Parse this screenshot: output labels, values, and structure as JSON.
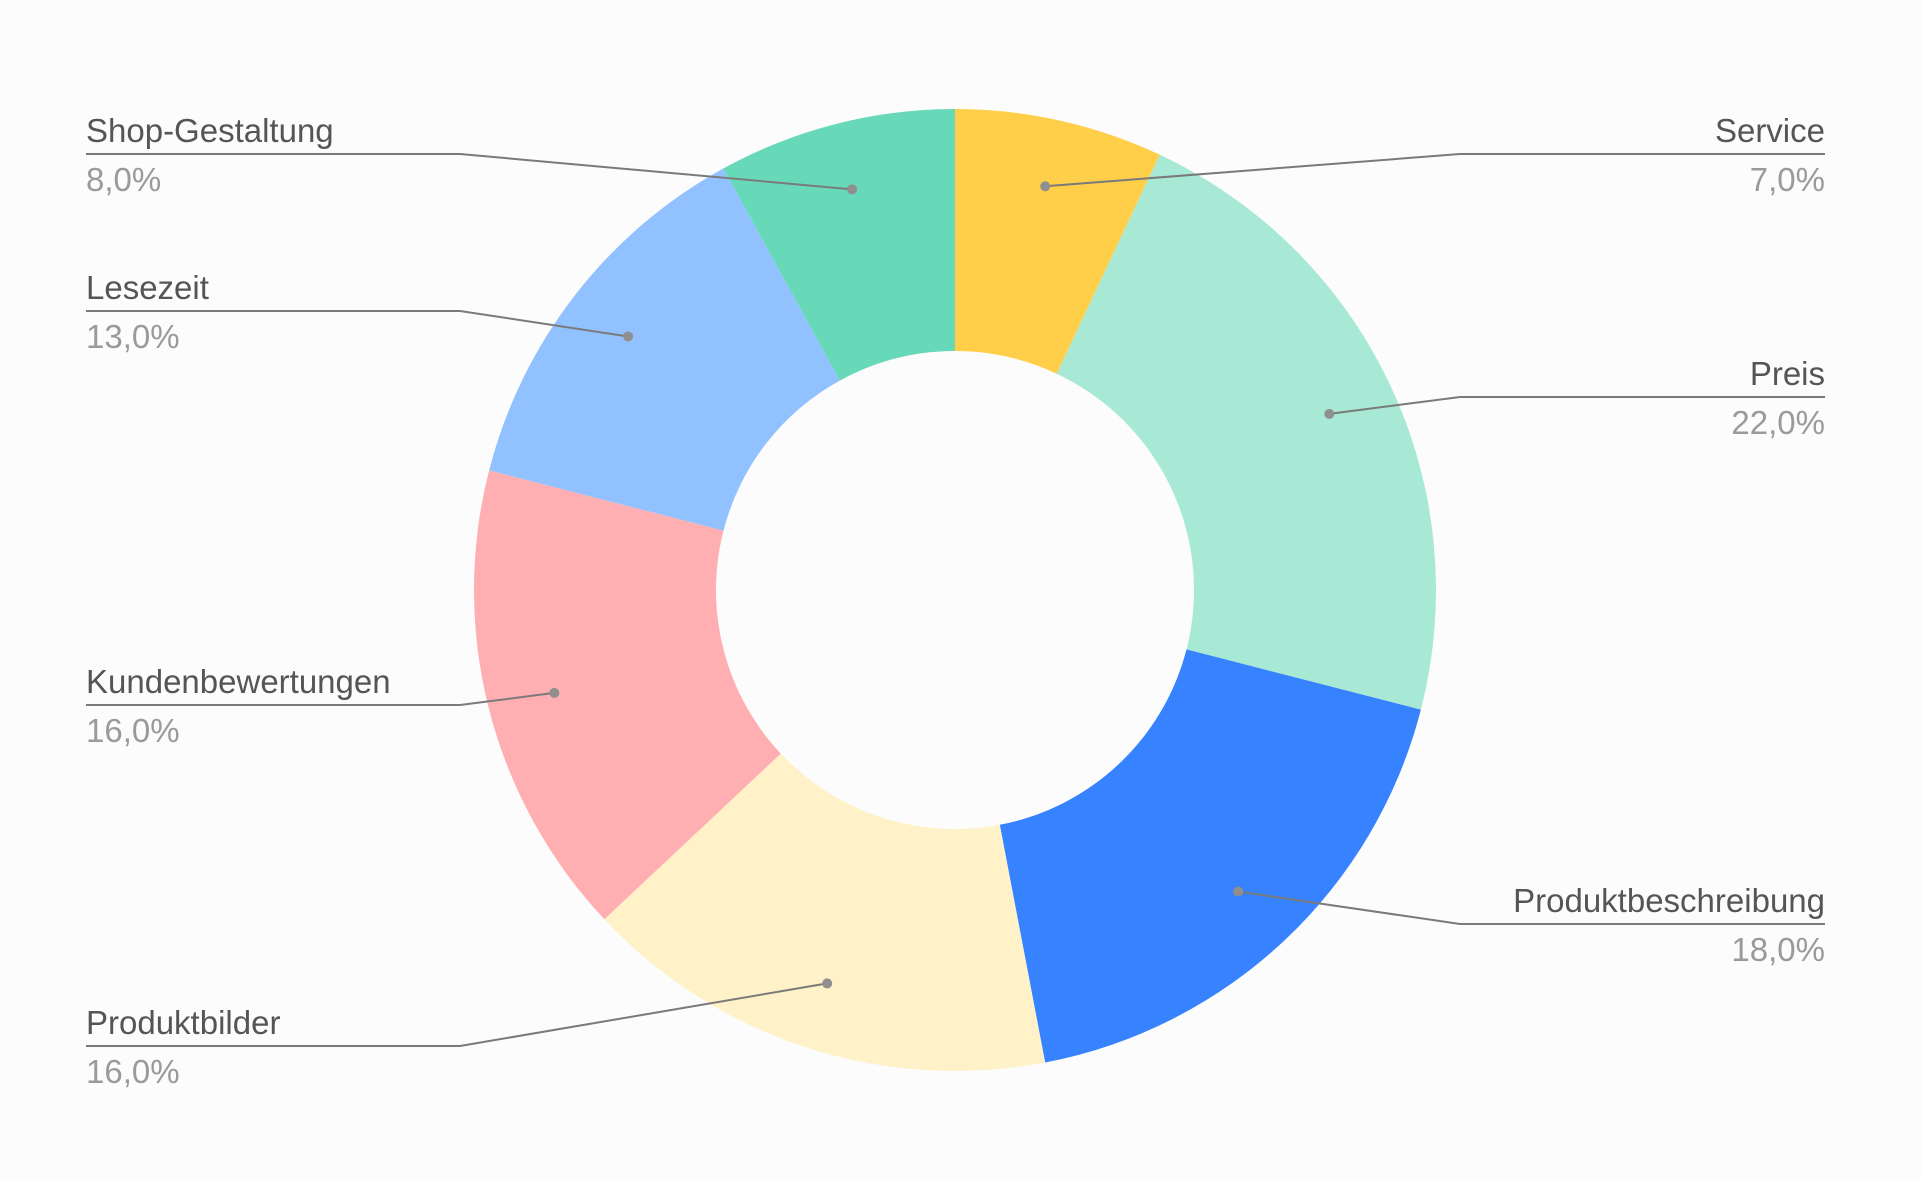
{
  "chart_data": {
    "type": "pie",
    "title": "",
    "donut": true,
    "legend": "none",
    "slices": [
      {
        "label": "Service",
        "value": 7.0,
        "display": "7,0%",
        "color": "#FFCF4A"
      },
      {
        "label": "Preis",
        "value": 22.0,
        "display": "22,0%",
        "color": "#A8E9D5"
      },
      {
        "label": "Produktbeschreibung",
        "value": 18.0,
        "display": "18,0%",
        "color": "#3782FF"
      },
      {
        "label": "Produktbilder",
        "value": 16.0,
        "display": "16,0%",
        "color": "#FFF1C8"
      },
      {
        "label": "Kundenbewertungen",
        "value": 16.0,
        "display": "16,0%",
        "color": "#FFAEB2"
      },
      {
        "label": "Lesezeit",
        "value": 13.0,
        "display": "13,0%",
        "color": "#91C2FF"
      },
      {
        "label": "Shop-Gestaltung",
        "value": 8.0,
        "display": "8,0%",
        "color": "#67D9B8"
      }
    ]
  }
}
